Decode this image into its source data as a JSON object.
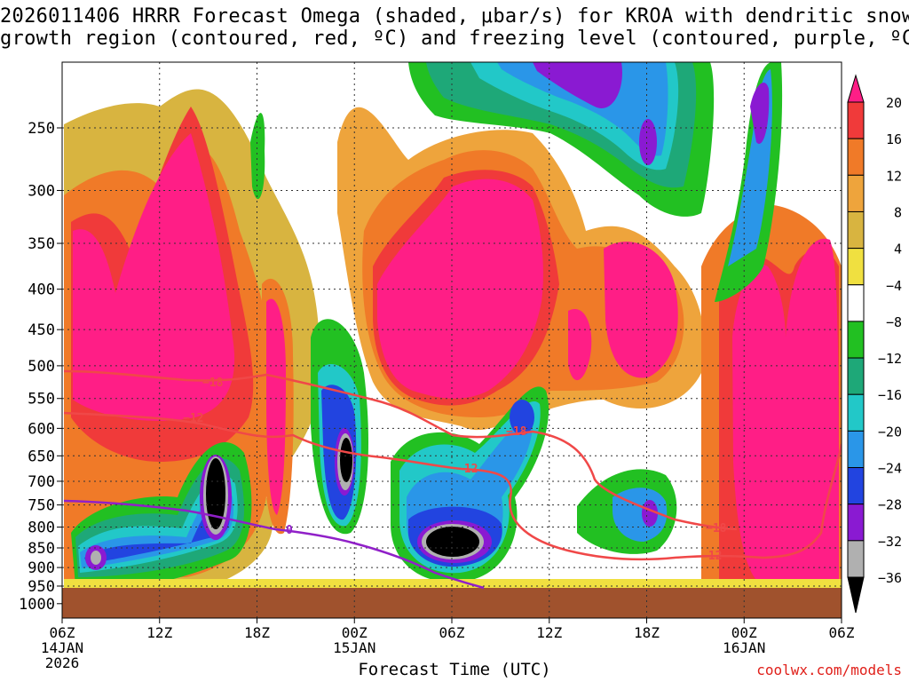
{
  "title_line1": "2026011406 HRRR Forecast Omega (shaded, μbar/s) for KROA with dendritic snow",
  "title_line2": "growth region (contoured, red, ºC) and freezing level (contoured, purple, ºC)",
  "credit": "coolwx.com/models",
  "chart_data": {
    "type": "heatmap",
    "xlabel": "Forecast Time (UTC)",
    "ylabel": "",
    "x_ticks": [
      {
        "lines": [
          "06Z",
          "14JAN",
          "2026"
        ]
      },
      {
        "lines": [
          "12Z"
        ]
      },
      {
        "lines": [
          "18Z"
        ]
      },
      {
        "lines": [
          "00Z",
          "15JAN"
        ]
      },
      {
        "lines": [
          "06Z"
        ]
      },
      {
        "lines": [
          "12Z"
        ]
      },
      {
        "lines": [
          "18Z"
        ]
      },
      {
        "lines": [
          "00Z",
          "16JAN"
        ]
      },
      {
        "lines": [
          "06Z"
        ]
      }
    ],
    "x_range_hours": [
      0,
      48
    ],
    "y_ticks": [
      250,
      300,
      350,
      400,
      450,
      500,
      550,
      600,
      650,
      700,
      750,
      800,
      850,
      900,
      950,
      1000
    ],
    "y_axis": "pressure_mb_log",
    "colorbar": {
      "labels": [
        "20",
        "16",
        "12",
        "8",
        "4",
        "−4",
        "−8",
        "−12",
        "−16",
        "−20",
        "−24",
        "−28",
        "−32",
        "−36"
      ],
      "colors": [
        "#ff1e86",
        "#f03a3a",
        "#f07a28",
        "#eea43c",
        "#d8b440",
        "#f0e040",
        "#ffffff",
        "#22c022",
        "#1ea878",
        "#22c8c8",
        "#2a96e8",
        "#2244e0",
        "#8a1ad2",
        "#b0b0b0",
        "#000000"
      ]
    },
    "contours": [
      {
        "label": "−18",
        "color": "#f04848"
      },
      {
        "label": "−12",
        "color": "#f04848"
      },
      {
        "label": "0",
        "color": "#9020c8"
      }
    ],
    "ground_color": "#a0522d",
    "grid": true
  }
}
